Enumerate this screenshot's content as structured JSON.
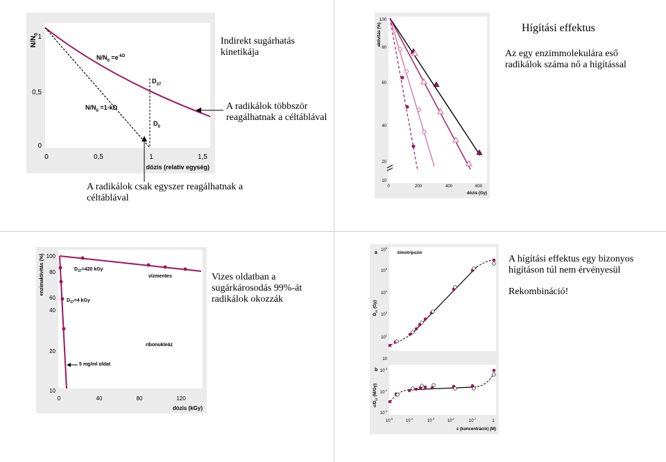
{
  "slide1": {
    "fig_a": {
      "y_title": "N/N",
      "y_title_sub": "0",
      "y_ticks": [
        "1",
        "0,5",
        "0"
      ],
      "x_ticks": [
        "0",
        "0,5",
        "1",
        "1,5"
      ],
      "x_title": "dózis (relatív egység)",
      "eq_exp": {
        "main": "N/N",
        "sub": "0",
        "mid": " =e",
        "sup": "-kD"
      },
      "eq_lin": {
        "main": "N/N",
        "sub": "0",
        "mid": " =1-kD"
      },
      "d37": {
        "main": "D",
        "sub": "37"
      },
      "d0": {
        "main": "D",
        "sub": "0"
      }
    },
    "caption_title": "Indirekt sugárhatás kinetikája",
    "caption_multi": "A radikálok többször reagálhatnak a céltáblával",
    "caption_once": "A radikálok csak egyszer reagálhatnak a céltáblával",
    "chart_data": [
      {
        "type": "line",
        "x_title": "dózis (relatív egység)",
        "y_title": "N/N0",
        "xlim": [
          0,
          1.6
        ],
        "ylim": [
          0,
          1
        ],
        "series": [
          {
            "x": [
              0,
              0.2,
              0.4,
              0.6,
              0.8,
              1.0,
              1.2,
              1.4,
              1.6
            ],
            "y": [
              1.0,
              0.82,
              0.67,
              0.55,
              0.45,
              0.37,
              0.3,
              0.25,
              0.2
            ]
          },
          {
            "x": [
              0,
              1.0
            ],
            "y": [
              1.0,
              0.0
            ]
          }
        ]
      },
      {
        "type": "line",
        "x_title": "dózis (Gy)",
        "y_title": "aktivitás (%)",
        "x_ticks": [
          "0",
          "200",
          "400",
          "600"
        ],
        "y_ticks": [
          "100",
          "80",
          "60",
          "40",
          "20",
          "10"
        ],
        "xlim": [
          0,
          750
        ],
        "ylim": [
          10,
          100
        ],
        "log_y": true,
        "series": [
          {
            "marker": "filled-triangle",
            "x": [
              0,
              90,
              180,
              345,
              600
            ],
            "y": [
              100,
              82,
              60,
              40,
              20
            ]
          },
          {
            "marker": "open-triangle",
            "x": [
              0,
              130,
              200,
              260,
              340
            ],
            "y": [
              100,
              68,
              50,
              40,
              22
            ]
          },
          {
            "marker": "open-circle",
            "x": [
              0,
              30,
              60,
              130,
              170
            ],
            "y": [
              100,
              80,
              67,
              47,
              25
            ]
          },
          {
            "marker": "filled-circle",
            "x": [
              0,
              30,
              60,
              100,
              125
            ],
            "y": [
              100,
              83,
              62,
              45,
              25
            ]
          }
        ]
      }
    ],
    "fig_b": {
      "y_title": "aktivitás (%)",
      "y_ticks": [
        "100",
        "80",
        "60",
        "40",
        "20",
        "10"
      ],
      "x_ticks": [
        "0",
        "200",
        "400",
        "600"
      ],
      "x_title": "dózis (Gy)"
    }
  },
  "slide2": {
    "title": "Hígítási effektus",
    "text": "Az egy enzimmolekulára eső radikálok száma nő a hígítással"
  },
  "slide3": {
    "caption": "Vizes oldatban a sugárkárosodás 99%-át radikálok okozzák",
    "fig": {
      "y_title": "enzimaktivitás (%)",
      "y_ticks": [
        "100",
        "80",
        "60",
        "40",
        "20",
        "10"
      ],
      "x_ticks": [
        "0",
        "40",
        "80",
        "120"
      ],
      "x_title": "dózis (kGy)",
      "label_d37_big": {
        "main": "D",
        "sub": "37",
        "rest": "=420 kGy"
      },
      "label_d37_small": {
        "main": "D",
        "sub": "37",
        "rest": "=4 kGy"
      },
      "label_water": "vízmentes",
      "label_rnase": "ribonukleáz",
      "label_solution": "5 mg/ml oldat"
    },
    "chart_data": {
      "type": "line",
      "x_title": "dózis (kGy)",
      "y_title": "enzimaktivitás (%)",
      "series": [
        {
          "name": "vízmentes",
          "x": [
            0,
            20,
            65,
            80,
            100,
            125
          ],
          "y": [
            99,
            98,
            95,
            94,
            93,
            91
          ]
        },
        {
          "name": "5 mg/ml oldat",
          "x": [
            0,
            1,
            2,
            4
          ],
          "y": [
            100,
            80,
            50,
            8
          ]
        }
      ]
    }
  },
  "slide4": {
    "fig": {
      "top_label": "kimotripszin",
      "top_ytitle": "D",
      "top_ytitle_sub": "37",
      "top_ytitle_unit": " (Gy)",
      "top_y_ticks": [
        {
          "base": "10",
          "exp": "6"
        },
        {
          "base": "10",
          "exp": "5"
        },
        {
          "base": "10",
          "exp": "4"
        },
        {
          "base": "10",
          "exp": "3"
        },
        {
          "base": "10",
          "exp": "2"
        },
        {
          "base": "10",
          "exp": ""
        }
      ],
      "panel_a": "a",
      "panel_b": "b",
      "bot_ytitle": "c/D",
      "bot_ytitle_sub": "37",
      "bot_ytitle_unit": " (M/Gy)",
      "bot_y_ticks": [
        {
          "base": "10",
          "exp": "-3"
        },
        {
          "base": "10",
          "exp": "-4"
        },
        {
          "base": "10",
          "exp": "-5"
        }
      ],
      "x_ticks": [
        {
          "base": "10",
          "exp": "-5"
        },
        {
          "base": "10",
          "exp": "-4"
        },
        {
          "base": "10",
          "exp": "-3"
        },
        {
          "base": "10",
          "exp": "-2"
        },
        {
          "base": "10",
          "exp": "-1"
        },
        {
          "base": "1",
          "exp": ""
        }
      ],
      "x_title": "c (koncentráció) (M)"
    },
    "text1": "A hígítási effektus egy bizonyos hígításon túl nem érvényesül",
    "text2": "Rekombináció!"
  },
  "colors": {
    "curve": "#a0145a",
    "curve_light": "#d65f96",
    "black": "#000000",
    "panel_bg": "#ebebeb",
    "border": "#cfcfcf"
  }
}
